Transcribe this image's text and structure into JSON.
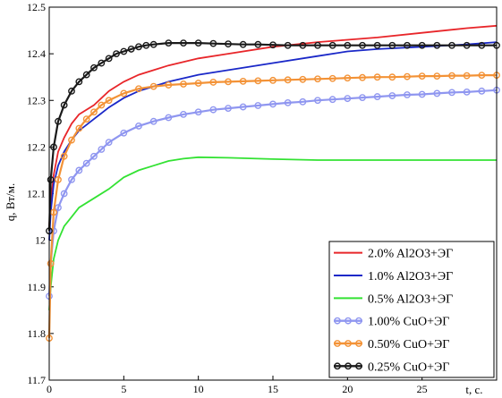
{
  "chart_data": {
    "type": "line",
    "title": "",
    "xlabel": "t, c.",
    "ylabel": "q, Вт/м.",
    "xlim": [
      0,
      30
    ],
    "ylim": [
      11.7,
      12.5
    ],
    "x_ticks": [
      "0",
      "5",
      "10",
      "15",
      "20",
      "25"
    ],
    "y_ticks": [
      "11.7",
      "11.8",
      "11.9",
      "12",
      "12.1",
      "12.2",
      "12.3",
      "12.4",
      "12.5"
    ],
    "grid": false,
    "legend_position": "bottom-right",
    "series": [
      {
        "name": "2.0% Al2O3+ЭГ",
        "color": "#e8262a",
        "marker": "none",
        "x": [
          0,
          0.1,
          0.3,
          0.6,
          1,
          1.5,
          2,
          3,
          4,
          5,
          6,
          7,
          8,
          10,
          12,
          15,
          18,
          20,
          22,
          25,
          28,
          30
        ],
        "y": [
          12.03,
          12.08,
          12.14,
          12.19,
          12.22,
          12.25,
          12.27,
          12.29,
          12.32,
          12.34,
          12.355,
          12.365,
          12.375,
          12.39,
          12.4,
          12.415,
          12.425,
          12.43,
          12.435,
          12.445,
          12.455,
          12.46
        ]
      },
      {
        "name": "1.0% Al2O3+ЭГ",
        "color": "#1a28c8",
        "marker": "none",
        "x": [
          0,
          0.1,
          0.3,
          0.6,
          1,
          1.5,
          2,
          3,
          4,
          5,
          6,
          7,
          8,
          10,
          12,
          15,
          18,
          20,
          22,
          25,
          28,
          30
        ],
        "y": [
          12.0,
          12.06,
          12.12,
          12.16,
          12.19,
          12.215,
          12.235,
          12.26,
          12.285,
          12.305,
          12.32,
          12.33,
          12.34,
          12.355,
          12.365,
          12.38,
          12.395,
          12.405,
          12.41,
          12.415,
          12.42,
          12.425
        ]
      },
      {
        "name": "0.5% Al2O3+ЭГ",
        "color": "#33e233",
        "marker": "none",
        "x": [
          0,
          0.1,
          0.3,
          0.6,
          1,
          1.5,
          2,
          3,
          4,
          5,
          6,
          7,
          8,
          9,
          10,
          12,
          15,
          18,
          20,
          22,
          25,
          28,
          30
        ],
        "y": [
          11.85,
          11.9,
          11.96,
          12.0,
          12.03,
          12.05,
          12.07,
          12.09,
          12.11,
          12.135,
          12.15,
          12.16,
          12.17,
          12.175,
          12.178,
          12.177,
          12.174,
          12.172,
          12.172,
          12.172,
          12.172,
          12.172,
          12.172
        ]
      },
      {
        "name": "1.00% CuO+ЭГ",
        "color": "#8f96f0",
        "marker": "o",
        "x": [
          0,
          0.1,
          0.3,
          0.6,
          1,
          1.5,
          2,
          2.5,
          3,
          3.5,
          4,
          5,
          6,
          7,
          8,
          9,
          10,
          11,
          12,
          13,
          14,
          15,
          16,
          17,
          18,
          19,
          20,
          21,
          22,
          23,
          24,
          25,
          26,
          27,
          28,
          29,
          30
        ],
        "y": [
          11.88,
          11.95,
          12.02,
          12.07,
          12.1,
          12.13,
          12.15,
          12.165,
          12.18,
          12.195,
          12.21,
          12.23,
          12.245,
          12.255,
          12.263,
          12.27,
          12.275,
          12.28,
          12.283,
          12.286,
          12.289,
          12.292,
          12.295,
          12.297,
          12.3,
          12.302,
          12.304,
          12.306,
          12.308,
          12.31,
          12.312,
          12.313,
          12.315,
          12.317,
          12.318,
          12.32,
          12.322
        ]
      },
      {
        "name": "0.50% CuO+ЭГ",
        "color": "#f39236",
        "marker": "o",
        "x": [
          0,
          0.1,
          0.3,
          0.6,
          1,
          1.5,
          2,
          2.5,
          3,
          3.5,
          4,
          5,
          6,
          7,
          8,
          9,
          10,
          11,
          12,
          13,
          14,
          15,
          16,
          17,
          18,
          19,
          20,
          21,
          22,
          23,
          24,
          25,
          26,
          27,
          28,
          29,
          30
        ],
        "y": [
          11.79,
          11.95,
          12.06,
          12.13,
          12.18,
          12.215,
          12.24,
          12.26,
          12.275,
          12.29,
          12.3,
          12.315,
          12.325,
          12.33,
          12.333,
          12.335,
          12.337,
          12.339,
          12.34,
          12.341,
          12.342,
          12.343,
          12.344,
          12.345,
          12.346,
          12.347,
          12.348,
          12.349,
          12.35,
          12.35,
          12.351,
          12.352,
          12.352,
          12.353,
          12.353,
          12.354,
          12.354
        ]
      },
      {
        "name": "0.25% CuO+ЭГ",
        "color": "#1a1a1a",
        "marker": "o",
        "x": [
          0,
          0.1,
          0.3,
          0.6,
          1,
          1.5,
          2,
          2.5,
          3,
          3.5,
          4,
          4.5,
          5,
          5.5,
          6,
          6.5,
          7,
          8,
          9,
          10,
          11,
          12,
          13,
          14,
          15,
          16,
          17,
          18,
          19,
          20,
          21,
          22,
          23,
          24,
          25,
          26,
          27,
          28,
          29,
          30
        ],
        "y": [
          12.02,
          12.13,
          12.2,
          12.255,
          12.29,
          12.32,
          12.34,
          12.355,
          12.37,
          12.38,
          12.39,
          12.4,
          12.405,
          12.41,
          12.415,
          12.418,
          12.42,
          12.423,
          12.423,
          12.423,
          12.422,
          12.421,
          12.42,
          12.42,
          12.419,
          12.418,
          12.418,
          12.418,
          12.418,
          12.418,
          12.418,
          12.418,
          12.418,
          12.418,
          12.418,
          12.418,
          12.418,
          12.418,
          12.418,
          12.418
        ]
      }
    ]
  }
}
